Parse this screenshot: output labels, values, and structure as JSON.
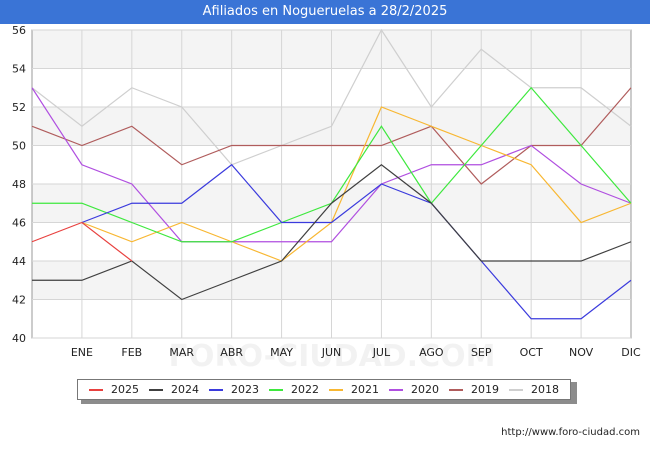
{
  "title": "Afiliados en Nogueruelas a 28/2/2025",
  "watermark": "FORO-CIUDAD.COM",
  "source": "http://www.foro-ciudad.com",
  "colors": {
    "header": "#3a74d6",
    "plot_band": "#f4f4f4",
    "grid": "#d6d6d6"
  },
  "chart_data": {
    "type": "line",
    "categories": [
      "",
      "ENE",
      "FEB",
      "MAR",
      "ABR",
      "MAY",
      "JUN",
      "JUL",
      "AGO",
      "SEP",
      "OCT",
      "NOV",
      "DIC"
    ],
    "ylim": [
      40,
      56
    ],
    "yticks": [
      40,
      42,
      44,
      46,
      48,
      50,
      52,
      54,
      56
    ],
    "grid": true,
    "legend_position": "bottom",
    "series": [
      {
        "name": "2025",
        "color": "#e8413f",
        "values": [
          45,
          46,
          44,
          null,
          null,
          null,
          null,
          null,
          null,
          null,
          null,
          null,
          null
        ]
      },
      {
        "name": "2024",
        "color": "#404040",
        "values": [
          43,
          43,
          44,
          42,
          43,
          44,
          47,
          49,
          47,
          44,
          44,
          44,
          45
        ]
      },
      {
        "name": "2023",
        "color": "#3b3bdd",
        "values": [
          null,
          46,
          47,
          47,
          49,
          46,
          46,
          48,
          47,
          44,
          41,
          41,
          43
        ]
      },
      {
        "name": "2022",
        "color": "#3ee83e",
        "values": [
          47,
          47,
          46,
          45,
          45,
          46,
          47,
          51,
          47,
          50,
          53,
          50,
          47
        ]
      },
      {
        "name": "2021",
        "color": "#f8b732",
        "values": [
          null,
          46,
          45,
          46,
          45,
          44,
          46,
          52,
          51,
          50,
          49,
          46,
          47
        ]
      },
      {
        "name": "2020",
        "color": "#b04fe0",
        "values": [
          53,
          49,
          48,
          45,
          45,
          45,
          45,
          48,
          49,
          49,
          50,
          48,
          47
        ]
      },
      {
        "name": "2019",
        "color": "#b05c5c",
        "values": [
          51,
          50,
          51,
          49,
          50,
          50,
          50,
          50,
          51,
          48,
          50,
          50,
          53
        ]
      },
      {
        "name": "2018",
        "color": "#cfcfcf",
        "values": [
          53,
          51,
          53,
          52,
          49,
          50,
          51,
          56,
          52,
          55,
          53,
          53,
          51
        ]
      }
    ]
  }
}
